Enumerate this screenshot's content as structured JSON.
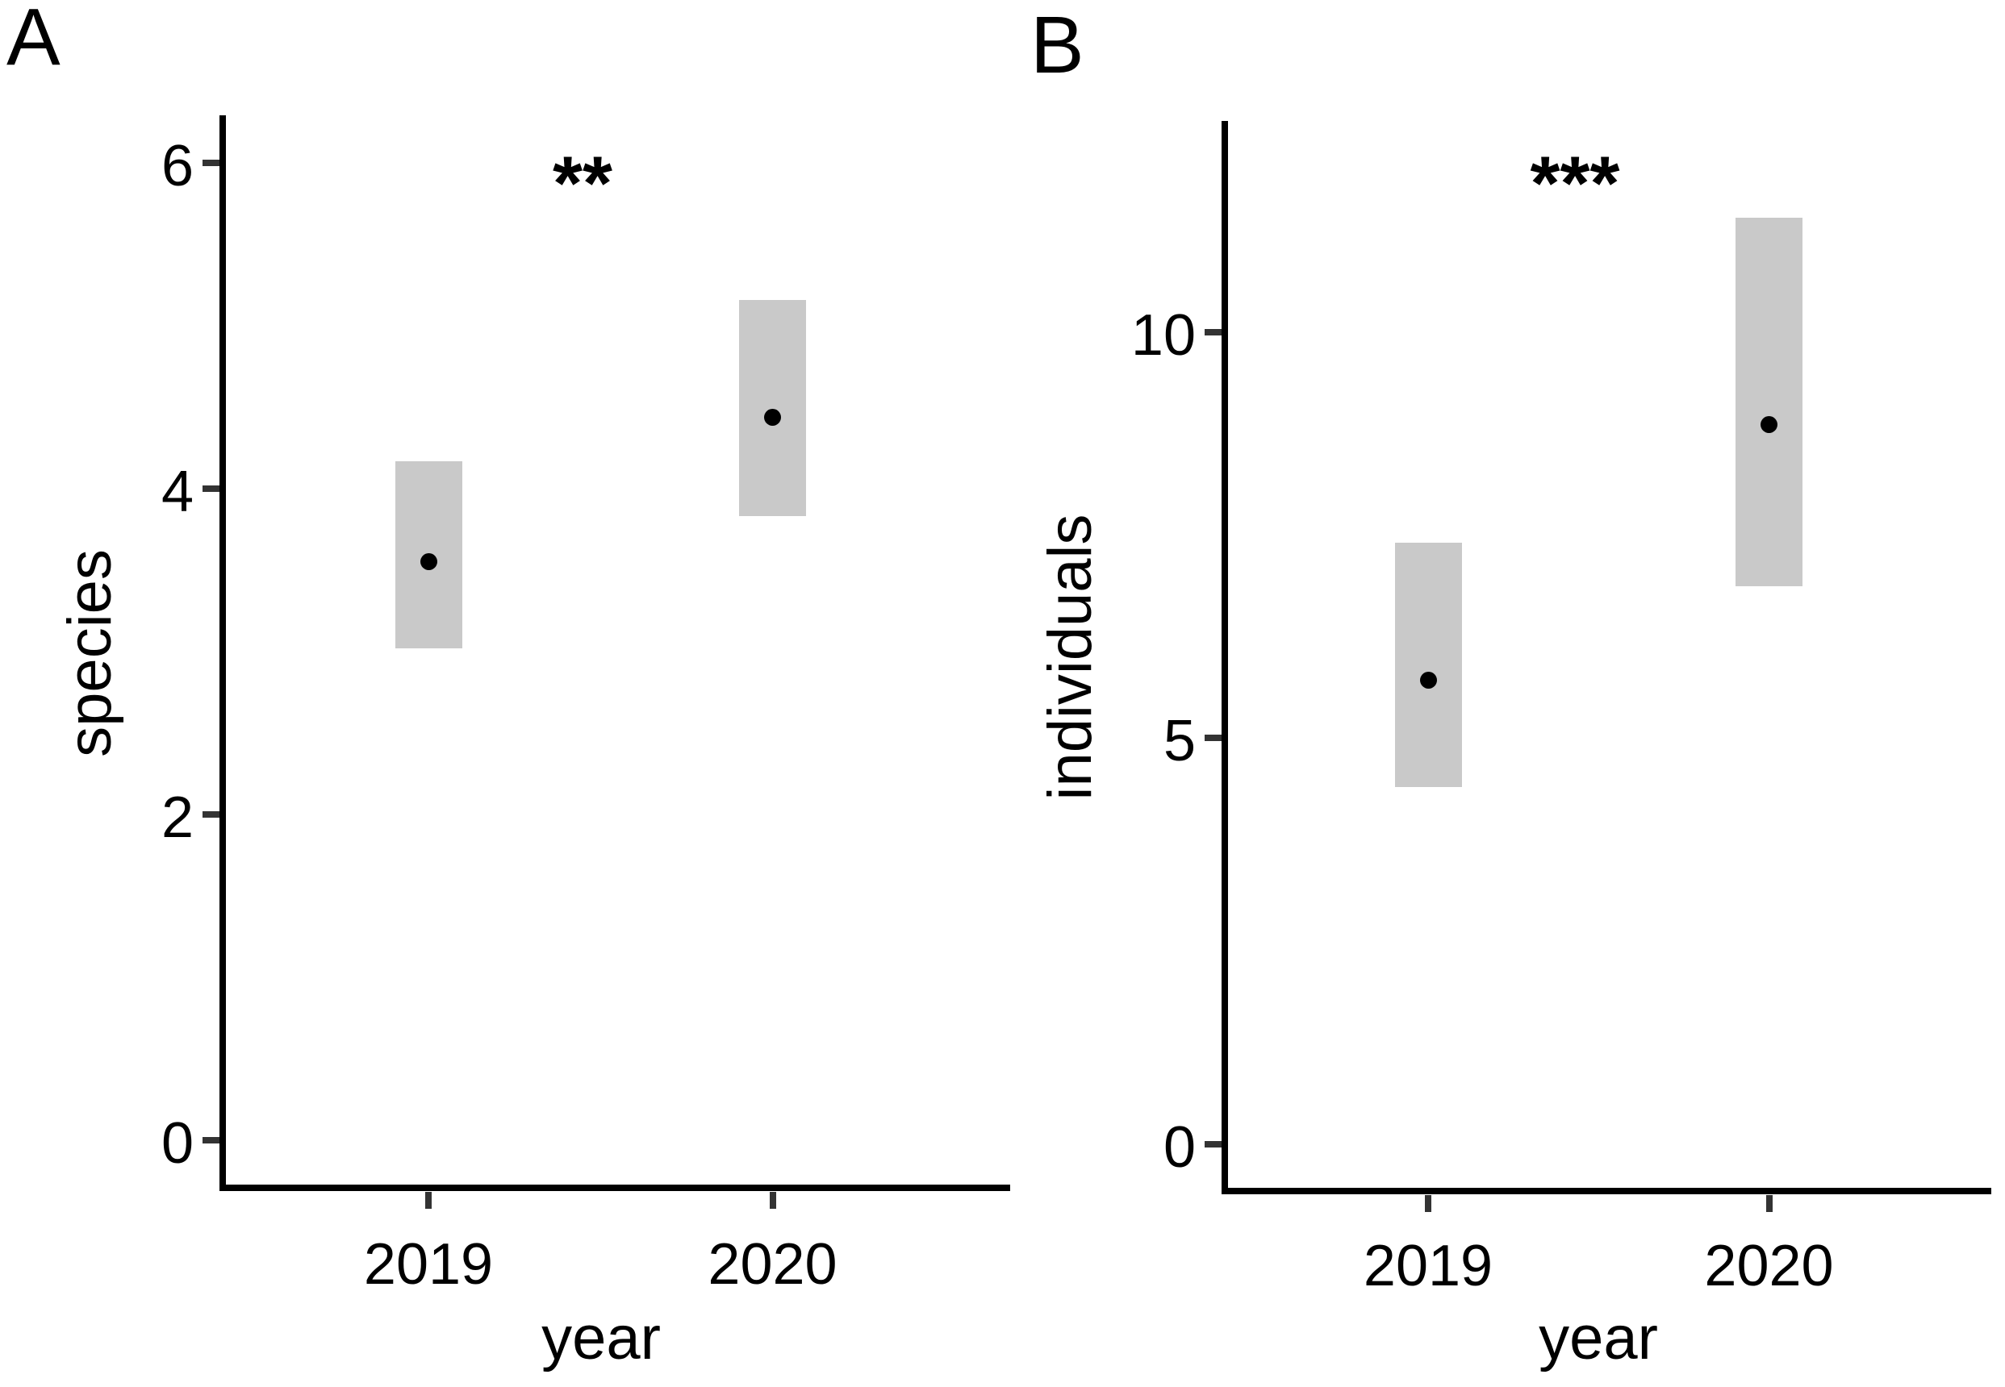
{
  "styles": {
    "background": "#ffffff",
    "bar_color": "#c9c9c9",
    "point_color": "#000000",
    "axis_color": "#000000",
    "tick_color": "#333333",
    "text_color": "#000000"
  },
  "chart_data": [
    {
      "type": "pointrange",
      "panel_label": "A",
      "title_annotation": "**",
      "xlabel": "year",
      "ylabel": "species",
      "categories": [
        "2019",
        "2020"
      ],
      "yticks": [
        0,
        2,
        4,
        6
      ],
      "ylim": [
        -0.3,
        6.3
      ],
      "grid": false,
      "legend": false,
      "series": [
        {
          "name": "estimate",
          "values": [
            3.55,
            4.44
          ]
        },
        {
          "name": "ci_low",
          "values": [
            3.02,
            3.83
          ]
        },
        {
          "name": "ci_high",
          "values": [
            4.17,
            5.16
          ]
        }
      ]
    },
    {
      "type": "pointrange",
      "panel_label": "B",
      "title_annotation": "***",
      "xlabel": "year",
      "ylabel": "individuals",
      "categories": [
        "2019",
        "2020"
      ],
      "yticks": [
        0,
        5,
        10
      ],
      "ylim": [
        -0.6,
        12.6
      ],
      "grid": false,
      "legend": false,
      "series": [
        {
          "name": "estimate",
          "values": [
            5.71,
            8.86
          ]
        },
        {
          "name": "ci_low",
          "values": [
            4.4,
            6.87
          ]
        },
        {
          "name": "ci_high",
          "values": [
            7.41,
            11.41
          ]
        }
      ]
    }
  ]
}
